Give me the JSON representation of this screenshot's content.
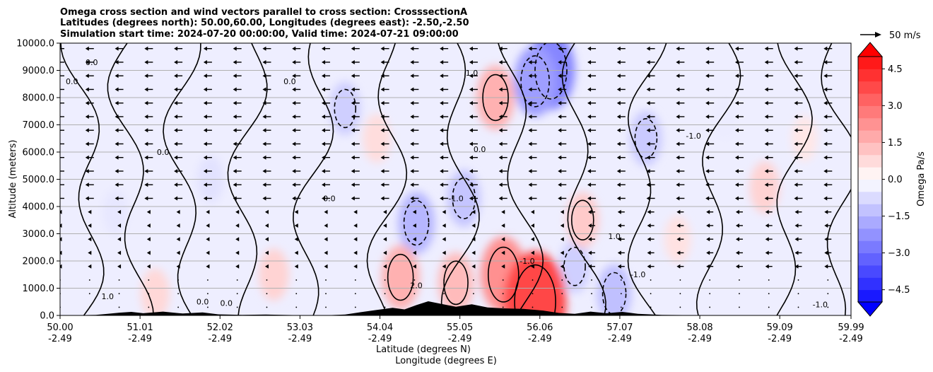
{
  "title": {
    "line1": "Omega cross section and wind vectors parallel to cross section: CrosssectionA",
    "line2": "Latitudes (degrees north): 50.00,60.00, Longitudes (degrees east): -2.50,-2.50",
    "line3": "Simulation start time: 2024-07-20 00:00:00, Valid time: 2024-07-21 09:00:00"
  },
  "reference_vector": {
    "label": "50 m/s"
  },
  "colorbar": {
    "label": "Omega Pa/s",
    "ticks": [
      "4.5",
      "3.0",
      "1.5",
      "0.0",
      "−1.5",
      "−3.0",
      "−4.5"
    ],
    "tick_values": [
      4.5,
      3.0,
      1.5,
      0.0,
      -1.5,
      -3.0,
      -4.5
    ],
    "range": [
      -5.0,
      5.0
    ],
    "colormap": "bwr"
  },
  "chart_data": {
    "type": "heatmap",
    "ylabel": "Altitude (meters)",
    "xlabel_line1": "Latitude (degrees N)",
    "xlabel_line2": "Longitude (degrees E)",
    "ylim": [
      0,
      10000
    ],
    "xlim": [
      50.0,
      59.99
    ],
    "yticks": [
      {
        "value": 0,
        "label": "0.0"
      },
      {
        "value": 1000,
        "label": "1000.0"
      },
      {
        "value": 2000,
        "label": "2000.0"
      },
      {
        "value": 3000,
        "label": "3000.0"
      },
      {
        "value": 4000,
        "label": "4000.0"
      },
      {
        "value": 5000,
        "label": "5000.0"
      },
      {
        "value": 6000,
        "label": "6000.0"
      },
      {
        "value": 7000,
        "label": "7000.0"
      },
      {
        "value": 8000,
        "label": "8000.0"
      },
      {
        "value": 9000,
        "label": "9000.0"
      },
      {
        "value": 10000,
        "label": "10000.0"
      }
    ],
    "xticks": [
      {
        "value": 50.0,
        "lat": "50.00",
        "lon": "-2.49"
      },
      {
        "value": 51.01,
        "lat": "51.01",
        "lon": "-2.49"
      },
      {
        "value": 52.02,
        "lat": "52.02",
        "lon": "-2.49"
      },
      {
        "value": 53.03,
        "lat": "53.03",
        "lon": "-2.49"
      },
      {
        "value": 54.04,
        "lat": "54.04",
        "lon": "-2.49"
      },
      {
        "value": 55.05,
        "lat": "55.05",
        "lon": "-2.49"
      },
      {
        "value": 56.06,
        "lat": "56.06",
        "lon": "-2.49"
      },
      {
        "value": 57.07,
        "lat": "57.07",
        "lon": "-2.49"
      },
      {
        "value": 58.08,
        "lat": "58.08",
        "lon": "-2.49"
      },
      {
        "value": 59.09,
        "lat": "59.09",
        "lon": "-2.49"
      },
      {
        "value": 59.99,
        "lat": "59.99",
        "lon": "-2.49"
      }
    ],
    "grid": "horizontal",
    "omega_features": [
      {
        "lat": 56.2,
        "alt": 9000,
        "omega": -2.5
      },
      {
        "lat": 56.0,
        "alt": 8600,
        "omega": -2.0
      },
      {
        "lat": 54.5,
        "alt": 3400,
        "omega": -1.5
      },
      {
        "lat": 55.1,
        "alt": 4300,
        "omega": -1.2
      },
      {
        "lat": 53.6,
        "alt": 7600,
        "omega": -1.0
      },
      {
        "lat": 57.4,
        "alt": 6500,
        "omega": -1.1
      },
      {
        "lat": 57.0,
        "alt": 800,
        "omega": -1.3
      },
      {
        "lat": 56.5,
        "alt": 1800,
        "omega": -1.0
      },
      {
        "lat": 55.5,
        "alt": 8000,
        "omega": 1.6
      },
      {
        "lat": 55.6,
        "alt": 1500,
        "omega": 2.3
      },
      {
        "lat": 56.0,
        "alt": 500,
        "omega": 3.8
      },
      {
        "lat": 54.3,
        "alt": 1400,
        "omega": 1.6
      },
      {
        "lat": 55.0,
        "alt": 1200,
        "omega": 1.4
      },
      {
        "lat": 58.9,
        "alt": 4700,
        "omega": 0.9
      },
      {
        "lat": 56.6,
        "alt": 3500,
        "omega": 1.1
      },
      {
        "lat": 52.7,
        "alt": 1500,
        "omega": 0.9
      },
      {
        "lat": 51.2,
        "alt": 800,
        "omega": 0.8
      },
      {
        "lat": 54.0,
        "alt": 6500,
        "omega": 0.7
      },
      {
        "lat": 51.9,
        "alt": 5000,
        "omega": -0.6
      },
      {
        "lat": 50.7,
        "alt": 3800,
        "omega": -0.5
      },
      {
        "lat": 57.8,
        "alt": 2800,
        "omega": 0.6
      },
      {
        "lat": 59.4,
        "alt": 6500,
        "omega": 0.5
      },
      {
        "lat": 58.4,
        "alt": 7200,
        "omega": -0.4
      }
    ],
    "contour_labels": [
      {
        "lat": 50.15,
        "alt": 8500,
        "text": "0.0"
      },
      {
        "lat": 50.4,
        "alt": 9200,
        "text": "0.0"
      },
      {
        "lat": 51.3,
        "alt": 5900,
        "text": "0.0"
      },
      {
        "lat": 52.9,
        "alt": 8500,
        "text": "0.0"
      },
      {
        "lat": 53.4,
        "alt": 4200,
        "text": "0.0"
      },
      {
        "lat": 55.3,
        "alt": 6000,
        "text": "0.0"
      },
      {
        "lat": 55.2,
        "alt": 8800,
        "text": "1.0"
      },
      {
        "lat": 55.0,
        "alt": 4200,
        "text": "-1.0"
      },
      {
        "lat": 55.9,
        "alt": 1900,
        "text": "-1.0"
      },
      {
        "lat": 57.3,
        "alt": 1400,
        "text": "-1.0"
      },
      {
        "lat": 58.0,
        "alt": 6500,
        "text": "-1.0"
      },
      {
        "lat": 57.0,
        "alt": 2800,
        "text": "1.0"
      },
      {
        "lat": 54.5,
        "alt": 1000,
        "text": "2.0"
      },
      {
        "lat": 52.1,
        "alt": 350,
        "text": "0.0"
      },
      {
        "lat": 50.6,
        "alt": 600,
        "text": "1.0"
      },
      {
        "lat": 59.6,
        "alt": 300,
        "text": "-1.0"
      },
      {
        "lat": 51.8,
        "alt": 400,
        "text": "0.0"
      }
    ],
    "terrain": [
      {
        "lat": 50.0,
        "alt": 0
      },
      {
        "lat": 50.45,
        "alt": 20
      },
      {
        "lat": 50.6,
        "alt": 60
      },
      {
        "lat": 50.75,
        "alt": 100
      },
      {
        "lat": 50.9,
        "alt": 130
      },
      {
        "lat": 51.05,
        "alt": 80
      },
      {
        "lat": 51.3,
        "alt": 140
      },
      {
        "lat": 51.55,
        "alt": 70
      },
      {
        "lat": 51.8,
        "alt": 110
      },
      {
        "lat": 52.0,
        "alt": 40
      },
      {
        "lat": 52.3,
        "alt": 20
      },
      {
        "lat": 52.6,
        "alt": 30
      },
      {
        "lat": 53.0,
        "alt": 10
      },
      {
        "lat": 53.4,
        "alt": 10
      },
      {
        "lat": 53.6,
        "alt": 30
      },
      {
        "lat": 53.8,
        "alt": 120
      },
      {
        "lat": 54.0,
        "alt": 200
      },
      {
        "lat": 54.2,
        "alt": 280
      },
      {
        "lat": 54.35,
        "alt": 220
      },
      {
        "lat": 54.5,
        "alt": 380
      },
      {
        "lat": 54.65,
        "alt": 520
      },
      {
        "lat": 54.8,
        "alt": 430
      },
      {
        "lat": 55.0,
        "alt": 320
      },
      {
        "lat": 55.2,
        "alt": 410
      },
      {
        "lat": 55.4,
        "alt": 290
      },
      {
        "lat": 55.6,
        "alt": 260
      },
      {
        "lat": 55.85,
        "alt": 240
      },
      {
        "lat": 56.1,
        "alt": 180
      },
      {
        "lat": 56.3,
        "alt": 90
      },
      {
        "lat": 56.5,
        "alt": 60
      },
      {
        "lat": 56.7,
        "alt": 140
      },
      {
        "lat": 56.9,
        "alt": 80
      },
      {
        "lat": 57.1,
        "alt": 130
      },
      {
        "lat": 57.3,
        "alt": 60
      },
      {
        "lat": 57.6,
        "alt": 20
      },
      {
        "lat": 58.0,
        "alt": 10
      },
      {
        "lat": 58.5,
        "alt": 0
      },
      {
        "lat": 59.99,
        "alt": 0
      }
    ],
    "wind_vectors": {
      "lat_start": 50.0,
      "lat_step": 0.373,
      "alt_levels": [
        300,
        800,
        1300,
        1800,
        2300,
        2800,
        3300,
        3800,
        4300,
        4800,
        5300,
        5800,
        6300,
        6800,
        7300,
        7800,
        8300,
        8800,
        9300,
        9800
      ],
      "pattern": "southward in upper levels and northern half, weak near surface"
    }
  }
}
